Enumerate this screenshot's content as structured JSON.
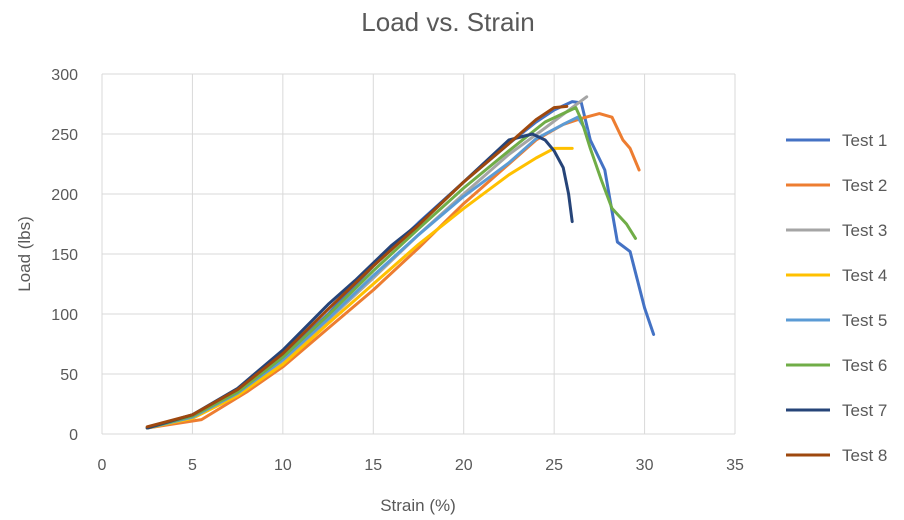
{
  "chart_data": {
    "type": "line",
    "title": "Load vs. Strain",
    "xlabel": "Strain (%)",
    "ylabel": "Load (lbs)",
    "xlim": [
      0,
      35
    ],
    "ylim": [
      0,
      300
    ],
    "xticks": [
      0,
      5,
      10,
      15,
      20,
      25,
      30,
      35
    ],
    "yticks": [
      0,
      50,
      100,
      150,
      200,
      250,
      300
    ],
    "grid": true,
    "legend": "right",
    "series": [
      {
        "name": "Test 1",
        "color": "#4472c4",
        "points": [
          [
            2.5,
            5
          ],
          [
            5,
            16
          ],
          [
            7.5,
            36
          ],
          [
            10,
            65
          ],
          [
            12.5,
            100
          ],
          [
            15,
            140
          ],
          [
            17.5,
            176
          ],
          [
            20,
            210
          ],
          [
            22.5,
            242
          ],
          [
            24,
            260
          ],
          [
            25,
            270
          ],
          [
            26,
            277
          ],
          [
            26.5,
            276
          ],
          [
            27,
            245
          ],
          [
            27.8,
            220
          ],
          [
            28.5,
            160
          ],
          [
            29.2,
            152
          ],
          [
            30,
            105
          ],
          [
            30.5,
            83
          ]
        ]
      },
      {
        "name": "Test 2",
        "color": "#ed7d31",
        "points": [
          [
            2.5,
            5
          ],
          [
            5.5,
            12
          ],
          [
            8,
            35
          ],
          [
            10,
            56
          ],
          [
            12.5,
            88
          ],
          [
            15,
            120
          ],
          [
            17.5,
            155
          ],
          [
            20,
            192
          ],
          [
            22.5,
            225
          ],
          [
            24,
            245
          ],
          [
            25.5,
            258
          ],
          [
            26.5,
            263
          ],
          [
            27.5,
            267
          ],
          [
            28.2,
            264
          ],
          [
            28.8,
            245
          ],
          [
            29.2,
            238
          ],
          [
            29.7,
            220
          ]
        ]
      },
      {
        "name": "Test 3",
        "color": "#a5a5a5",
        "points": [
          [
            2.5,
            5
          ],
          [
            5,
            15
          ],
          [
            7.5,
            33
          ],
          [
            10,
            60
          ],
          [
            12.5,
            95
          ],
          [
            15,
            130
          ],
          [
            17.5,
            166
          ],
          [
            20,
            200
          ],
          [
            22.5,
            233
          ],
          [
            24.5,
            255
          ],
          [
            26,
            272
          ],
          [
            26.8,
            281
          ]
        ]
      },
      {
        "name": "Test 4",
        "color": "#ffc000",
        "points": [
          [
            2.5,
            5
          ],
          [
            5,
            13
          ],
          [
            7.5,
            32
          ],
          [
            10,
            58
          ],
          [
            12.5,
            92
          ],
          [
            15,
            125
          ],
          [
            17.5,
            158
          ],
          [
            20,
            188
          ],
          [
            22.5,
            216
          ],
          [
            24,
            230
          ],
          [
            25,
            238
          ],
          [
            26,
            238
          ]
        ]
      },
      {
        "name": "Test 5",
        "color": "#5b9bd5",
        "points": [
          [
            2.5,
            5
          ],
          [
            5,
            14
          ],
          [
            7.5,
            34
          ],
          [
            10,
            62
          ],
          [
            12.5,
            96
          ],
          [
            15,
            132
          ],
          [
            17.5,
            166
          ],
          [
            20,
            198
          ],
          [
            22.5,
            226
          ],
          [
            24,
            246
          ],
          [
            25.5,
            258
          ],
          [
            26.3,
            264
          ],
          [
            26.8,
            252
          ]
        ]
      },
      {
        "name": "Test 6",
        "color": "#70ad47",
        "points": [
          [
            2.5,
            5
          ],
          [
            5,
            15
          ],
          [
            7.5,
            35
          ],
          [
            10,
            64
          ],
          [
            12.5,
            99
          ],
          [
            15,
            136
          ],
          [
            17.5,
            171
          ],
          [
            20,
            205
          ],
          [
            22.5,
            236
          ],
          [
            24.5,
            260
          ],
          [
            26.2,
            272
          ],
          [
            26.5,
            262
          ],
          [
            27,
            238
          ],
          [
            27.6,
            212
          ],
          [
            28.2,
            188
          ],
          [
            29,
            175
          ],
          [
            29.5,
            163
          ]
        ]
      },
      {
        "name": "Test 7",
        "color": "#264478",
        "points": [
          [
            2.5,
            5
          ],
          [
            5,
            16
          ],
          [
            7.5,
            38
          ],
          [
            10,
            70
          ],
          [
            12.5,
            108
          ],
          [
            14,
            128
          ],
          [
            16,
            157
          ],
          [
            17.5,
            175
          ],
          [
            20,
            210
          ],
          [
            22.5,
            245
          ],
          [
            23.8,
            250
          ],
          [
            24.5,
            245
          ],
          [
            25,
            236
          ],
          [
            25.5,
            222
          ],
          [
            25.8,
            200
          ],
          [
            26,
            177
          ]
        ]
      },
      {
        "name": "Test 8",
        "color": "#9e480e",
        "points": [
          [
            2.5,
            6
          ],
          [
            5,
            16
          ],
          [
            7.5,
            37
          ],
          [
            10,
            67
          ],
          [
            12.5,
            104
          ],
          [
            15,
            140
          ],
          [
            17.5,
            174
          ],
          [
            20,
            210
          ],
          [
            22.5,
            242
          ],
          [
            24,
            262
          ],
          [
            25,
            272
          ],
          [
            25.7,
            273
          ]
        ]
      }
    ]
  }
}
